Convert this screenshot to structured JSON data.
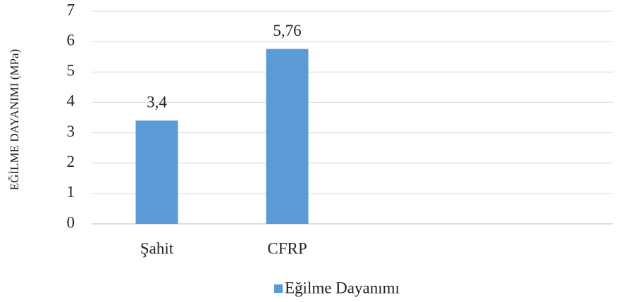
{
  "chart_data": {
    "type": "bar",
    "y_label": "EĞİLME DAYANIMI (MPa)",
    "categories": [
      "Şahit",
      "CFRP",
      null,
      null
    ],
    "series": [
      {
        "name": "Eğilme Dayanımı",
        "color": "#5b9bd5",
        "values": [
          3.4,
          5.76,
          null,
          null
        ],
        "value_labels": [
          "3,4",
          "5,76",
          null,
          null
        ]
      }
    ],
    "ylim": [
      0,
      7
    ],
    "yticks": [
      0,
      1,
      2,
      3,
      4,
      5,
      6,
      7
    ],
    "grid": true,
    "legend": "bottom"
  }
}
